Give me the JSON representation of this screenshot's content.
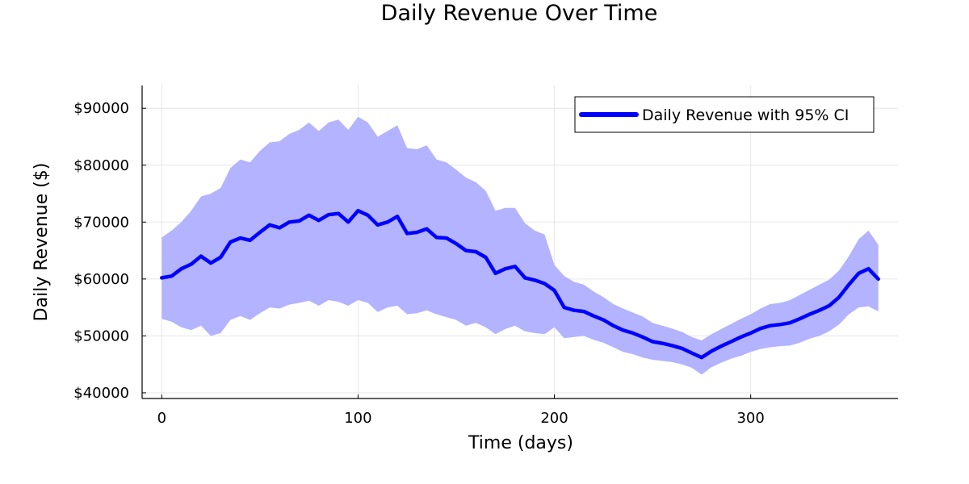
{
  "chart_data": {
    "type": "line",
    "title": "Daily Revenue Over Time",
    "xlabel": "Time (days)",
    "ylabel": "Daily Revenue ($)",
    "xlim": [
      -10,
      375
    ],
    "ylim": [
      39000,
      94000
    ],
    "x_ticks": [
      0,
      100,
      200,
      300
    ],
    "x_tick_labels": [
      "0",
      "100",
      "200",
      "300"
    ],
    "y_ticks": [
      40000,
      50000,
      60000,
      70000,
      80000,
      90000
    ],
    "y_tick_labels": [
      "$40000",
      "$50000",
      "$60000",
      "$70000",
      "$80000",
      "$90000"
    ],
    "grid": true,
    "legend": {
      "position": "top-right",
      "entries": [
        "Daily Revenue with 95% CI"
      ]
    },
    "series": [
      {
        "name": "Daily Revenue with 95% CI",
        "color": "#0000ff",
        "band_color": "#b3b3ff",
        "ci_level": 0.95,
        "x": [
          0,
          5,
          10,
          15,
          20,
          25,
          30,
          35,
          40,
          45,
          50,
          55,
          60,
          65,
          70,
          75,
          80,
          85,
          90,
          95,
          100,
          105,
          110,
          115,
          120,
          125,
          130,
          135,
          140,
          145,
          150,
          155,
          160,
          165,
          170,
          175,
          180,
          185,
          190,
          195,
          200,
          205,
          210,
          215,
          220,
          225,
          230,
          235,
          240,
          245,
          250,
          255,
          260,
          265,
          270,
          275,
          280,
          285,
          290,
          295,
          300,
          305,
          310,
          315,
          320,
          325,
          330,
          335,
          340,
          345,
          350,
          355,
          360,
          365
        ],
        "values": [
          60200,
          60500,
          61800,
          62600,
          64000,
          62800,
          63800,
          66500,
          67200,
          66800,
          68200,
          69500,
          69000,
          70000,
          70200,
          71200,
          70300,
          71300,
          71500,
          70000,
          72000,
          71200,
          69500,
          70000,
          71000,
          68000,
          68200,
          68800,
          67300,
          67200,
          66200,
          65000,
          64800,
          63800,
          61000,
          61800,
          62200,
          60200,
          59800,
          59200,
          58000,
          55000,
          54500,
          54300,
          53500,
          52800,
          51800,
          51000,
          50500,
          49800,
          49000,
          48700,
          48300,
          47800,
          47000,
          46200,
          47300,
          48200,
          49000,
          49800,
          50500,
          51300,
          51800,
          52000,
          52300,
          53000,
          53800,
          54500,
          55300,
          56800,
          59000,
          61000,
          61800,
          60000
        ],
        "lower": [
          53000,
          52500,
          51500,
          51000,
          51800,
          50000,
          50500,
          52800,
          53500,
          52800,
          54000,
          55000,
          54800,
          55500,
          55800,
          56200,
          55300,
          56300,
          56000,
          55300,
          56300,
          55800,
          54200,
          55000,
          55300,
          53800,
          54000,
          54500,
          53800,
          53300,
          52800,
          51800,
          52300,
          51500,
          50300,
          51200,
          51800,
          50800,
          50500,
          50300,
          51500,
          49600,
          49800,
          50000,
          49300,
          48800,
          48000,
          47200,
          46800,
          46200,
          45800,
          45600,
          45400,
          45000,
          44400,
          43200,
          44500,
          45300,
          46000,
          46500,
          47200,
          47700,
          48000,
          48200,
          48300,
          48800,
          49500,
          50000,
          50800,
          52000,
          53800,
          55000,
          55200,
          54300
        ],
        "upper": [
          67300,
          68500,
          70000,
          72000,
          74500,
          75000,
          76000,
          79500,
          81000,
          80500,
          82500,
          84000,
          84200,
          85500,
          86200,
          87500,
          86000,
          87500,
          88000,
          86200,
          88500,
          87500,
          85000,
          86000,
          87000,
          83000,
          82800,
          83500,
          81000,
          80500,
          79200,
          77800,
          77000,
          75500,
          72000,
          72500,
          72500,
          69800,
          68500,
          67800,
          62500,
          60500,
          59500,
          59000,
          57800,
          56800,
          55600,
          54800,
          54100,
          53400,
          52300,
          51800,
          51300,
          50700,
          49800,
          49200,
          50300,
          51200,
          52100,
          53000,
          53800,
          54800,
          55600,
          55800,
          56300,
          57200,
          58100,
          59000,
          59900,
          61500,
          64000,
          67000,
          68500,
          66000
        ]
      }
    ]
  }
}
